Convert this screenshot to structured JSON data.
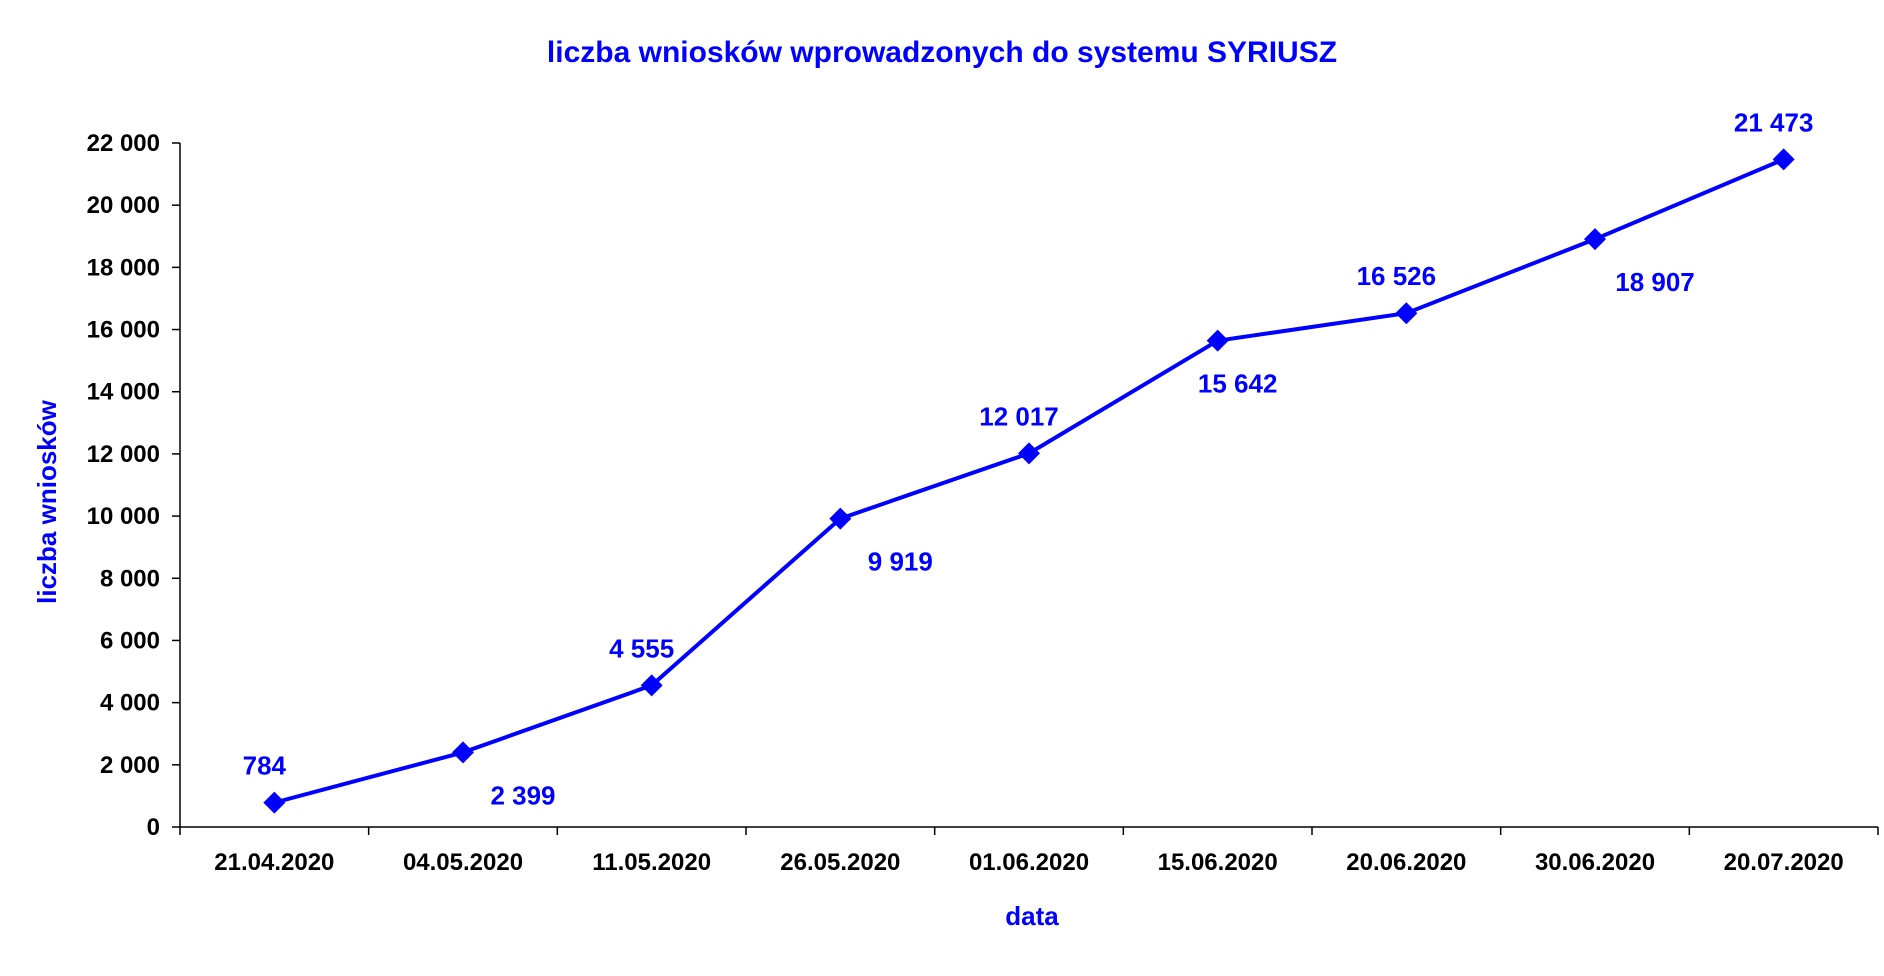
{
  "colors": {
    "series": "#0000FF",
    "axis": "#000000",
    "background": "#FFFFFF"
  },
  "chart_data": {
    "type": "line",
    "title": "liczba wniosków wprowadzonych do systemu SYRIUSZ",
    "xlabel": "data",
    "ylabel": "liczba wniosków",
    "categories": [
      "21.04.2020",
      "04.05.2020",
      "11.05.2020",
      "26.05.2020",
      "01.06.2020",
      "15.06.2020",
      "20.06.2020",
      "30.06.2020",
      "20.07.2020"
    ],
    "series": [
      {
        "values": [
          784,
          2399,
          4555,
          9919,
          12017,
          15642,
          16526,
          18907,
          21473
        ],
        "labels": [
          "784",
          "2 399",
          "4 555",
          "9 919",
          "12 017",
          "15 642",
          "16 526",
          "18 907",
          "21 473"
        ],
        "label_positions": [
          "above",
          "below-right",
          "above",
          "below-right",
          "above",
          "below",
          "above",
          "below-right",
          "above"
        ],
        "marker": "diamond"
      }
    ],
    "ylim": [
      0,
      22000
    ],
    "yticks": [
      0,
      2000,
      4000,
      6000,
      8000,
      10000,
      12000,
      14000,
      16000,
      18000,
      20000,
      22000
    ],
    "ytick_labels": [
      "0",
      "2 000",
      "4 000",
      "6 000",
      "8 000",
      "10 000",
      "12 000",
      "14 000",
      "16 000",
      "18 000",
      "20 000",
      "22 000"
    ],
    "grid": false,
    "legend": "none"
  }
}
